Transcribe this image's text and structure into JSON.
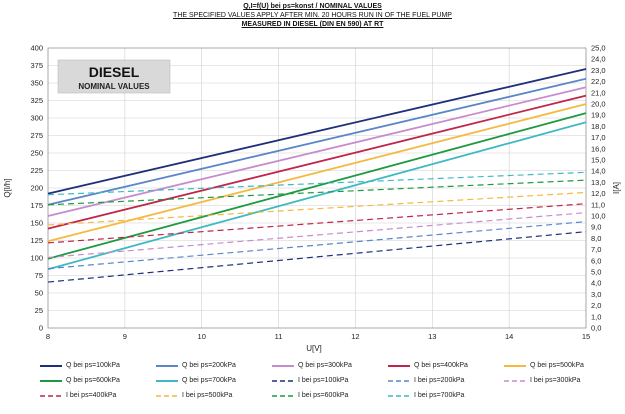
{
  "chart_data": {
    "type": "line",
    "title": "Q,I=f(U) bei ps=konst / NOMINAL VALUES",
    "subtitle": "THE SPECIFIED VALUES APPLY AFTER MIN. 20 HOURS RUN IN OF THE FUEL PUMP",
    "subtitle2": "MEASURED IN DIESEL (DIN EN 590) AT RT",
    "badge_title": "DIESEL",
    "badge_subtitle": "NOMINAL VALUES",
    "xlabel": "U[V]",
    "ylabel_left": "Q[l/h]",
    "ylabel_right": "I[A]",
    "xlim": [
      8,
      15
    ],
    "ylim_left": [
      0,
      400
    ],
    "ylim_right": [
      0,
      25
    ],
    "x_ticks": [
      "8",
      "9",
      "10",
      "11",
      "12",
      "13",
      "14",
      "15"
    ],
    "y_left_ticks": [
      "0",
      "25",
      "50",
      "75",
      "100",
      "125",
      "150",
      "175",
      "200",
      "225",
      "250",
      "275",
      "300",
      "325",
      "350",
      "375",
      "400"
    ],
    "y_right_ticks": [
      "0,0",
      "1,0",
      "2,0",
      "3,0",
      "4,0",
      "5,0",
      "6,0",
      "7,0",
      "8,0",
      "9,0",
      "10,0",
      "11,0",
      "12,0",
      "13,0",
      "14,0",
      "15,0",
      "16,0",
      "17,0",
      "18,0",
      "19,0",
      "20,0",
      "21,0",
      "22,0",
      "23,0",
      "24,0",
      "25,0"
    ],
    "grid": true,
    "legend_position": "bottom",
    "series": [
      {
        "name": "Q  bei ps=100kPa",
        "axis": "left",
        "color": "#1f2f7a",
        "dash": false,
        "x": [
          8,
          15
        ],
        "y": [
          192,
          370
        ]
      },
      {
        "name": "Q  bei ps=200kPa",
        "axis": "left",
        "color": "#5b86c7",
        "dash": false,
        "x": [
          8,
          15
        ],
        "y": [
          176,
          356
        ]
      },
      {
        "name": "Q  bei ps=300kPa",
        "axis": "left",
        "color": "#c78ccf",
        "dash": false,
        "x": [
          8,
          15
        ],
        "y": [
          160,
          344
        ]
      },
      {
        "name": "Q  bei ps=400kPa",
        "axis": "left",
        "color": "#c0264a",
        "dash": false,
        "x": [
          8,
          15
        ],
        "y": [
          142,
          332
        ]
      },
      {
        "name": "Q  bei ps=500kPa",
        "axis": "left",
        "color": "#f5b941",
        "dash": false,
        "x": [
          8,
          15
        ],
        "y": [
          124,
          320
        ]
      },
      {
        "name": "Q  bei ps=600kPa",
        "axis": "left",
        "color": "#1e9a3f",
        "dash": false,
        "x": [
          8,
          15
        ],
        "y": [
          99,
          307
        ]
      },
      {
        "name": "Q  bei ps=700kPa",
        "axis": "left",
        "color": "#3fb9c4",
        "dash": false,
        "x": [
          8,
          15
        ],
        "y": [
          84,
          294
        ]
      },
      {
        "name": "I  bei ps=100kPa",
        "axis": "right",
        "color": "#1f2f7a",
        "dash": true,
        "x": [
          8,
          15
        ],
        "y": [
          4.1,
          8.6
        ]
      },
      {
        "name": "I  bei ps=200kPa",
        "axis": "right",
        "color": "#5b86c7",
        "dash": true,
        "x": [
          8,
          15
        ],
        "y": [
          5.3,
          9.5
        ]
      },
      {
        "name": "I  bei ps=300kPa",
        "axis": "right",
        "color": "#c78ccf",
        "dash": true,
        "x": [
          8,
          15
        ],
        "y": [
          6.3,
          10.3
        ]
      },
      {
        "name": "I  bei ps=400kPa",
        "axis": "right",
        "color": "#c0264a",
        "dash": true,
        "x": [
          8,
          15
        ],
        "y": [
          7.6,
          11.1
        ]
      },
      {
        "name": "I  bei ps=500kPa",
        "axis": "right",
        "color": "#f5b941",
        "dash": true,
        "x": [
          8,
          15
        ],
        "y": [
          9.2,
          12.1
        ]
      },
      {
        "name": "I  bei ps=600kPa",
        "axis": "right",
        "color": "#1e9a3f",
        "dash": true,
        "x": [
          8,
          15
        ],
        "y": [
          11.0,
          13.2
        ]
      },
      {
        "name": "I  bei ps=700kPa",
        "axis": "right",
        "color": "#3fb9c4",
        "dash": true,
        "x": [
          8,
          15
        ],
        "y": [
          11.9,
          13.9
        ]
      }
    ]
  }
}
